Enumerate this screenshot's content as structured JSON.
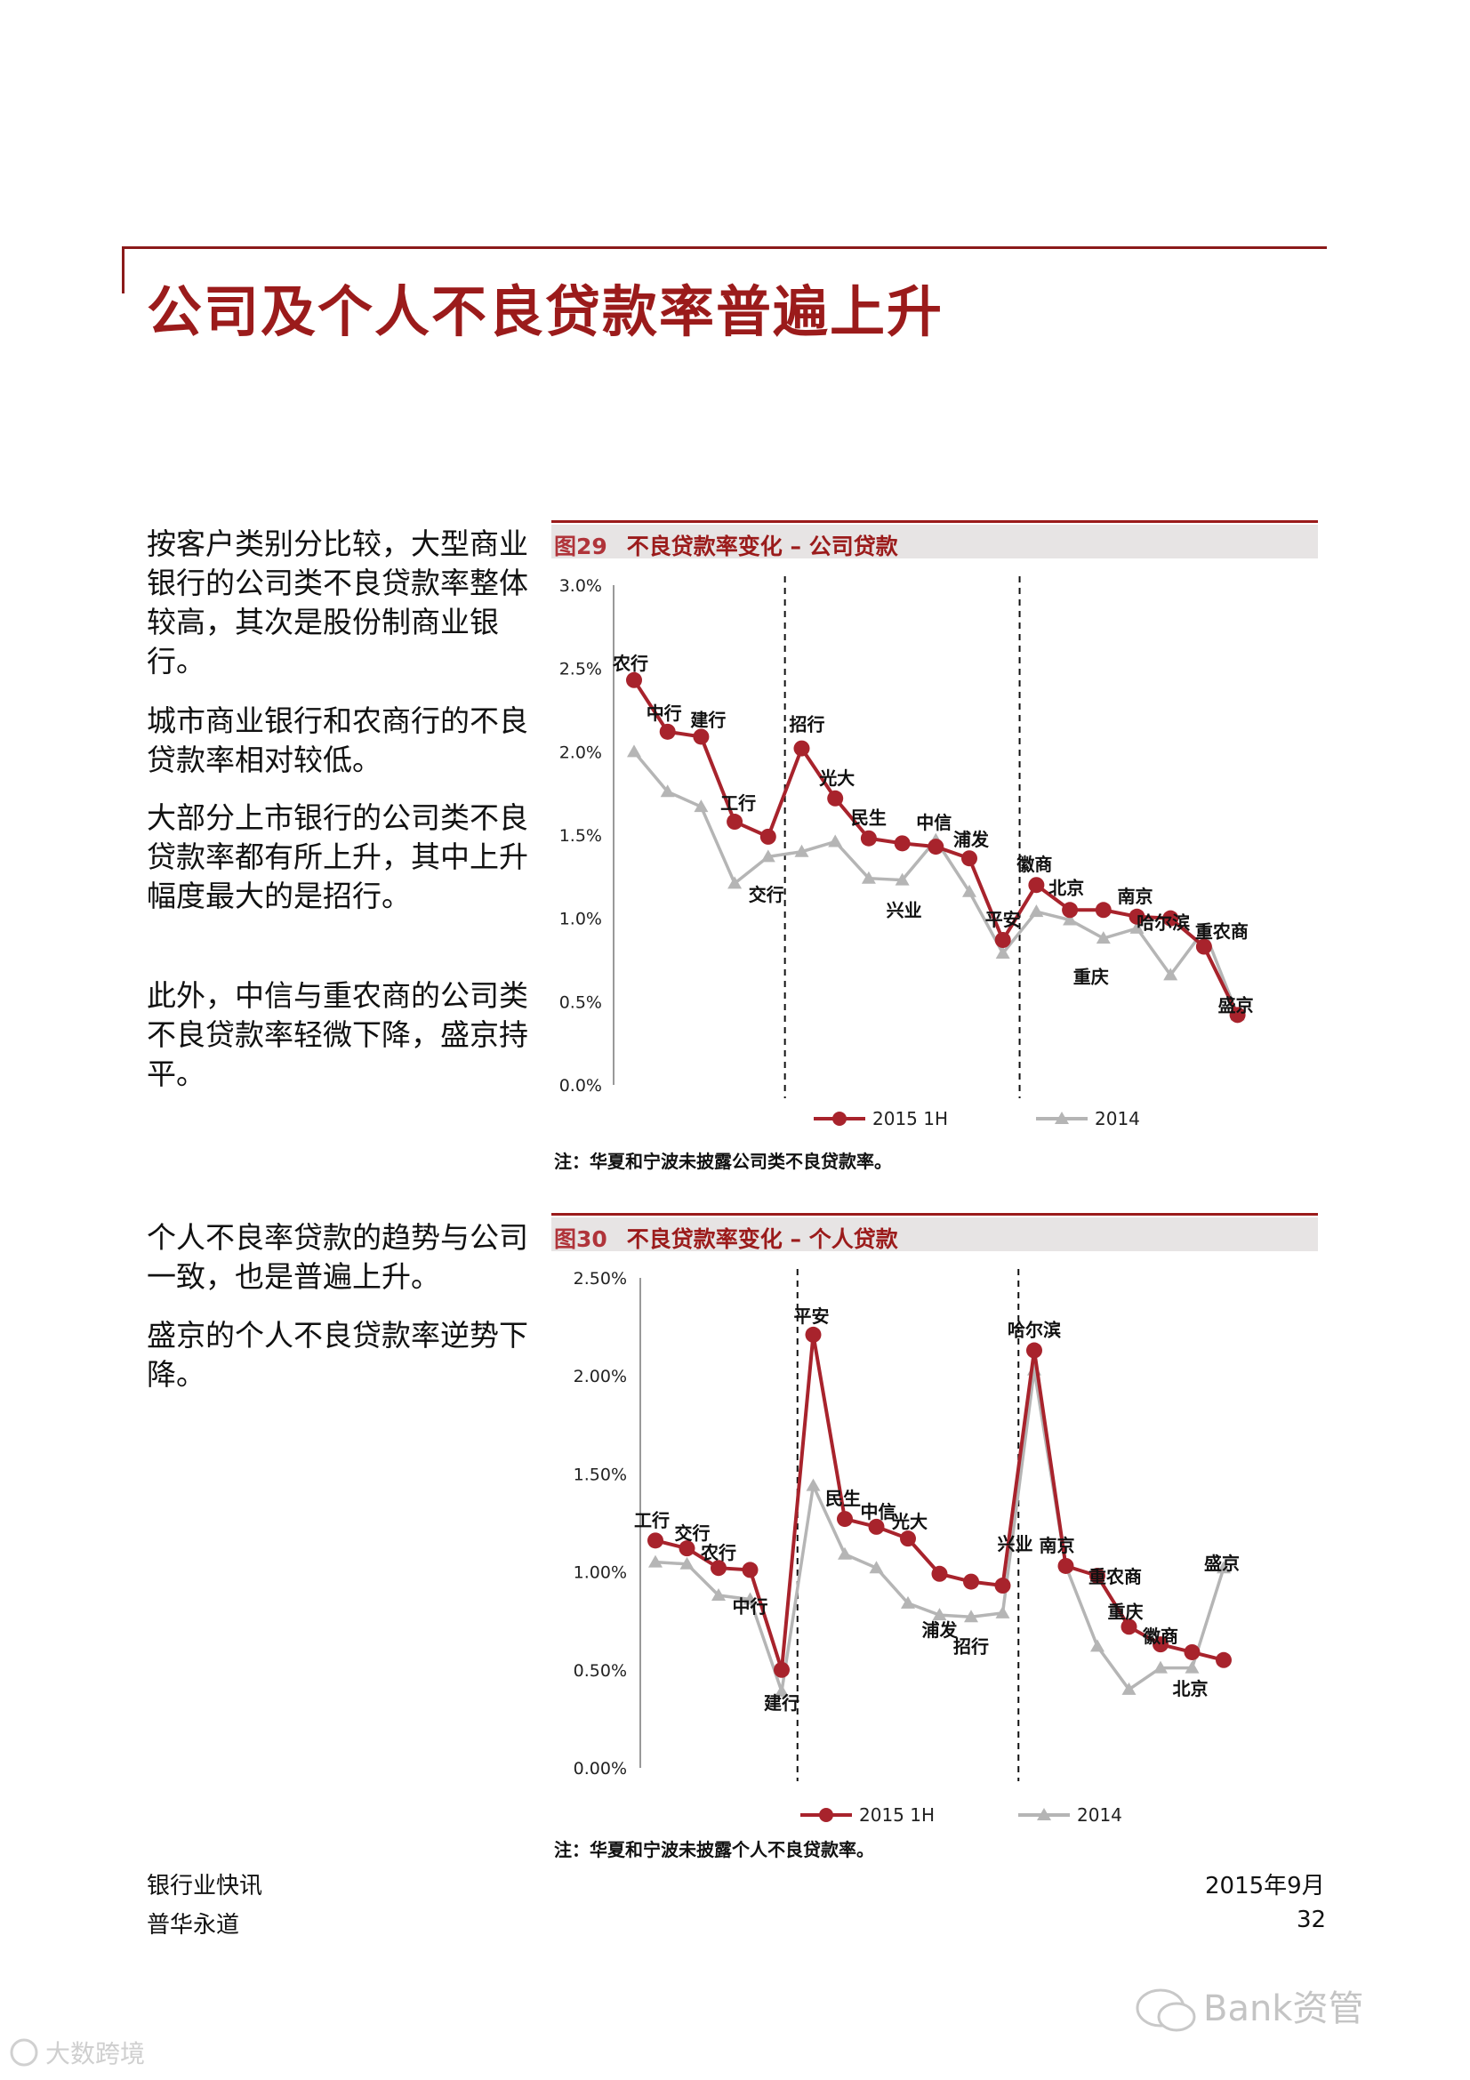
{
  "page_title": "公司及个人不良贷款率普遍上升",
  "paragraphs": [
    "按客户类别分比较，大型商业银行的公司类不良贷款率整体较高，其次是股份制商业银行。",
    "城市商业银行和农商行的不良贷款率相对较低。",
    "大部分上市银行的公司类不良贷款率都有所上升，其中上升幅度最大的是招行。",
    "此外，中信与重农商的公司类不良贷款率轻微下降，盛京持平。",
    "个人不良率贷款的趋势与公司一致，也是普遍上升。",
    "盛京的个人不良贷款率逆势下降。"
  ],
  "figures": [
    {
      "number": "图29",
      "title": "不良贷款率变化 – 公司贷款",
      "note": "注：华夏和宁波未披露公司类不良贷款率。"
    },
    {
      "number": "图30",
      "title": "不良贷款率变化 – 个人贷款",
      "note": "注：华夏和宁波未披露个人不良贷款率。"
    }
  ],
  "footer": {
    "left_line1": "银行业快讯",
    "left_line2": "普华永道",
    "right_line1": "2015年9月",
    "right_line2": "32"
  },
  "watermarks": {
    "right": "Bank资管",
    "left": "大数跨境"
  },
  "colors": {
    "series_2015": "#a8232c",
    "series_2014": "#b5b5b5",
    "accent": "#9b1b1b"
  },
  "chart_data": [
    {
      "type": "line",
      "categories": [
        "农行",
        "中行",
        "建行",
        "工行",
        "交行",
        "招行",
        "光大",
        "民生",
        "兴业",
        "中信",
        "浦发",
        "平安",
        "徽商",
        "北京",
        "重庆",
        "南京",
        "哈尔滨",
        "重农商",
        "盛京"
      ],
      "series": [
        {
          "name": "2015 1H",
          "values": [
            2.43,
            2.12,
            2.09,
            1.58,
            1.49,
            2.02,
            1.72,
            1.48,
            1.45,
            1.43,
            1.36,
            0.87,
            1.2,
            1.05,
            1.05,
            1.01,
            1.0,
            0.83,
            0.42
          ]
        },
        {
          "name": "2014",
          "values": [
            2.0,
            1.76,
            1.67,
            1.21,
            1.37,
            1.4,
            1.46,
            1.24,
            1.23,
            1.47,
            1.16,
            0.79,
            1.04,
            0.99,
            0.88,
            0.94,
            0.66,
            0.93,
            0.42
          ]
        }
      ],
      "yticks": [
        "0.0%",
        "0.5%",
        "1.0%",
        "1.5%",
        "2.0%",
        "2.5%",
        "3.0%"
      ],
      "ylim": [
        0,
        3.0
      ],
      "legend": "bottom",
      "dividers_after": [
        "交行",
        "平安"
      ]
    },
    {
      "type": "line",
      "categories": [
        "工行",
        "交行",
        "农行",
        "中行",
        "建行",
        "平安",
        "民生",
        "中信",
        "光大",
        "浦发",
        "招行",
        "兴业",
        "哈尔滨",
        "南京",
        "重农商",
        "重庆",
        "徽商",
        "北京",
        "盛京"
      ],
      "series": [
        {
          "name": "2015 1H",
          "values": [
            1.16,
            1.12,
            1.02,
            1.01,
            0.5,
            2.21,
            1.27,
            1.23,
            1.17,
            0.99,
            0.95,
            0.93,
            2.13,
            1.03,
            0.98,
            0.72,
            0.63,
            0.59,
            0.55
          ]
        },
        {
          "name": "2014",
          "values": [
            1.05,
            1.04,
            0.88,
            0.86,
            0.39,
            1.44,
            1.09,
            1.02,
            0.84,
            0.78,
            0.77,
            0.79,
            2.03,
            1.03,
            0.62,
            0.4,
            0.51,
            0.51,
            1.02
          ]
        }
      ],
      "yticks": [
        "0.00%",
        "0.50%",
        "1.00%",
        "1.50%",
        "2.00%",
        "2.50%"
      ],
      "ylim": [
        0,
        2.5
      ],
      "legend": "bottom",
      "dividers_after": [
        "建行",
        "兴业"
      ]
    }
  ]
}
